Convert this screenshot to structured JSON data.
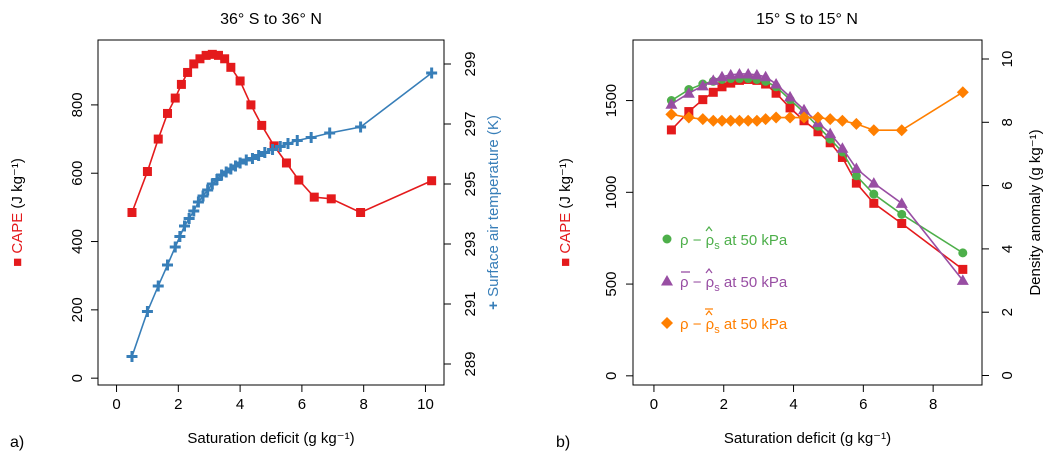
{
  "chart_data": [
    {
      "panel_label": "a)",
      "type": "line",
      "title": "36° S to 36° N",
      "xlabel": "Saturation deficit  (g kg⁻¹)",
      "xlim": [
        -0.6,
        10.6
      ],
      "xticks": [
        0,
        2,
        4,
        6,
        8,
        10
      ],
      "y_left": {
        "label_name": "CAPE",
        "label_unit": "(J kg⁻¹)",
        "ylim": [
          -20,
          990
        ],
        "ticks": [
          0,
          200,
          400,
          600,
          800
        ],
        "color": "#e41a1c"
      },
      "y_right": {
        "label_name": "Surface air temperature",
        "label_unit": "(K)",
        "ylim": [
          288.3,
          299.8
        ],
        "ticks": [
          289,
          291,
          293,
          295,
          297,
          299
        ],
        "color": "#377eb8"
      },
      "series": [
        {
          "name": "CAPE",
          "axis": "left",
          "color": "#e41a1c",
          "marker": "square",
          "x": [
            0.5,
            1.0,
            1.35,
            1.65,
            1.9,
            2.1,
            2.3,
            2.5,
            2.7,
            2.9,
            3.1,
            3.3,
            3.5,
            3.7,
            4.0,
            4.35,
            4.7,
            5.1,
            5.5,
            5.9,
            6.4,
            6.95,
            7.9,
            10.2
          ],
          "y": [
            485,
            605,
            700,
            775,
            820,
            860,
            895,
            920,
            935,
            945,
            948,
            945,
            935,
            910,
            870,
            800,
            740,
            680,
            630,
            580,
            530,
            525,
            485,
            578
          ]
        },
        {
          "name": "Surface air temperature",
          "axis": "right",
          "color": "#377eb8",
          "marker": "plus",
          "x": [
            0.5,
            1.0,
            1.35,
            1.65,
            1.9,
            2.05,
            2.2,
            2.35,
            2.5,
            2.65,
            2.8,
            2.95,
            3.1,
            3.25,
            3.4,
            3.55,
            3.7,
            3.85,
            4.0,
            4.2,
            4.4,
            4.6,
            4.8,
            5.05,
            5.3,
            5.55,
            5.85,
            6.3,
            6.9,
            7.9,
            10.2
          ],
          "y": [
            289.25,
            290.75,
            291.6,
            292.3,
            292.9,
            293.25,
            293.6,
            293.85,
            294.1,
            294.4,
            294.6,
            294.8,
            295.0,
            295.15,
            295.3,
            295.4,
            295.5,
            295.6,
            295.7,
            295.8,
            295.85,
            295.95,
            296.05,
            296.15,
            296.25,
            296.35,
            296.45,
            296.55,
            296.7,
            296.9,
            298.7
          ]
        }
      ]
    },
    {
      "panel_label": "b)",
      "type": "line",
      "title": "15° S to 15° N",
      "xlabel": "Saturation deficit  (g kg⁻¹)",
      "xlim": [
        -0.6,
        9.4
      ],
      "xticks": [
        0,
        2,
        4,
        6,
        8
      ],
      "y_left": {
        "label_name": "CAPE",
        "label_unit": "(J kg⁻¹)",
        "ylim": [
          -50,
          1830
        ],
        "ticks": [
          0,
          500,
          1000,
          1500
        ]
      },
      "y_right": {
        "label_name": "Density anomaly",
        "label_unit": "(g kg⁻¹)",
        "ylim": [
          -0.3,
          10.6
        ],
        "ticks": [
          0,
          2,
          4,
          6,
          8,
          10
        ]
      },
      "legend_position": "bottom-left",
      "series": [
        {
          "name": "CAPE",
          "axis": "left",
          "color": "#e41a1c",
          "marker": "square",
          "x": [
            0.5,
            1.0,
            1.4,
            1.7,
            1.95,
            2.2,
            2.45,
            2.7,
            2.95,
            3.2,
            3.5,
            3.9,
            4.3,
            4.7,
            5.05,
            5.4,
            5.8,
            6.3,
            7.1,
            8.85
          ],
          "y": [
            1340,
            1440,
            1505,
            1545,
            1575,
            1595,
            1610,
            1615,
            1610,
            1590,
            1540,
            1460,
            1390,
            1330,
            1270,
            1190,
            1050,
            940,
            830,
            580
          ]
        },
        {
          "name": "green",
          "axis": "left",
          "color": "#4daf4a",
          "marker": "circle",
          "x": [
            0.5,
            1.0,
            1.4,
            1.7,
            1.95,
            2.2,
            2.45,
            2.7,
            2.95,
            3.2,
            3.5,
            3.9,
            4.3,
            4.7,
            5.05,
            5.4,
            5.8,
            6.3,
            7.1,
            8.85
          ],
          "y": [
            1500,
            1560,
            1590,
            1605,
            1615,
            1620,
            1620,
            1620,
            1615,
            1605,
            1575,
            1505,
            1435,
            1360,
            1290,
            1220,
            1090,
            990,
            880,
            670
          ]
        },
        {
          "name": "purple",
          "axis": "left",
          "color": "#984ea3",
          "marker": "triangle",
          "x": [
            0.5,
            1.0,
            1.4,
            1.7,
            1.95,
            2.2,
            2.45,
            2.7,
            2.95,
            3.2,
            3.5,
            3.9,
            4.3,
            4.7,
            5.05,
            5.4,
            5.8,
            6.3,
            7.1,
            8.85
          ],
          "y": [
            1480,
            1540,
            1580,
            1610,
            1630,
            1640,
            1645,
            1645,
            1640,
            1630,
            1590,
            1520,
            1450,
            1380,
            1320,
            1240,
            1130,
            1050,
            940,
            520
          ]
        },
        {
          "name": "orange",
          "axis": "right",
          "color": "#ff7f00",
          "marker": "diamond",
          "x": [
            0.5,
            1.0,
            1.4,
            1.7,
            1.95,
            2.2,
            2.45,
            2.7,
            2.95,
            3.2,
            3.5,
            3.9,
            4.3,
            4.7,
            5.05,
            5.4,
            5.8,
            6.3,
            7.1,
            8.85
          ],
          "y": [
            8.25,
            8.15,
            8.1,
            8.05,
            8.05,
            8.05,
            8.05,
            8.05,
            8.05,
            8.1,
            8.15,
            8.15,
            8.15,
            8.15,
            8.1,
            8.05,
            7.95,
            7.75,
            7.75,
            8.95
          ]
        }
      ],
      "legend": [
        {
          "color": "#4daf4a",
          "marker": "circle",
          "rho": "ρ",
          "rho_bar": false,
          "rhos_doublebar": false,
          "suffix": "at 50 kPa"
        },
        {
          "color": "#984ea3",
          "marker": "triangle",
          "rho": "ρ",
          "rho_bar": true,
          "rhos_doublebar": false,
          "suffix": "at 50 kPa"
        },
        {
          "color": "#ff7f00",
          "marker": "diamond",
          "rho": "ρ",
          "rho_bar": false,
          "rhos_doublebar": true,
          "suffix": "at 50 kPa"
        }
      ]
    }
  ]
}
